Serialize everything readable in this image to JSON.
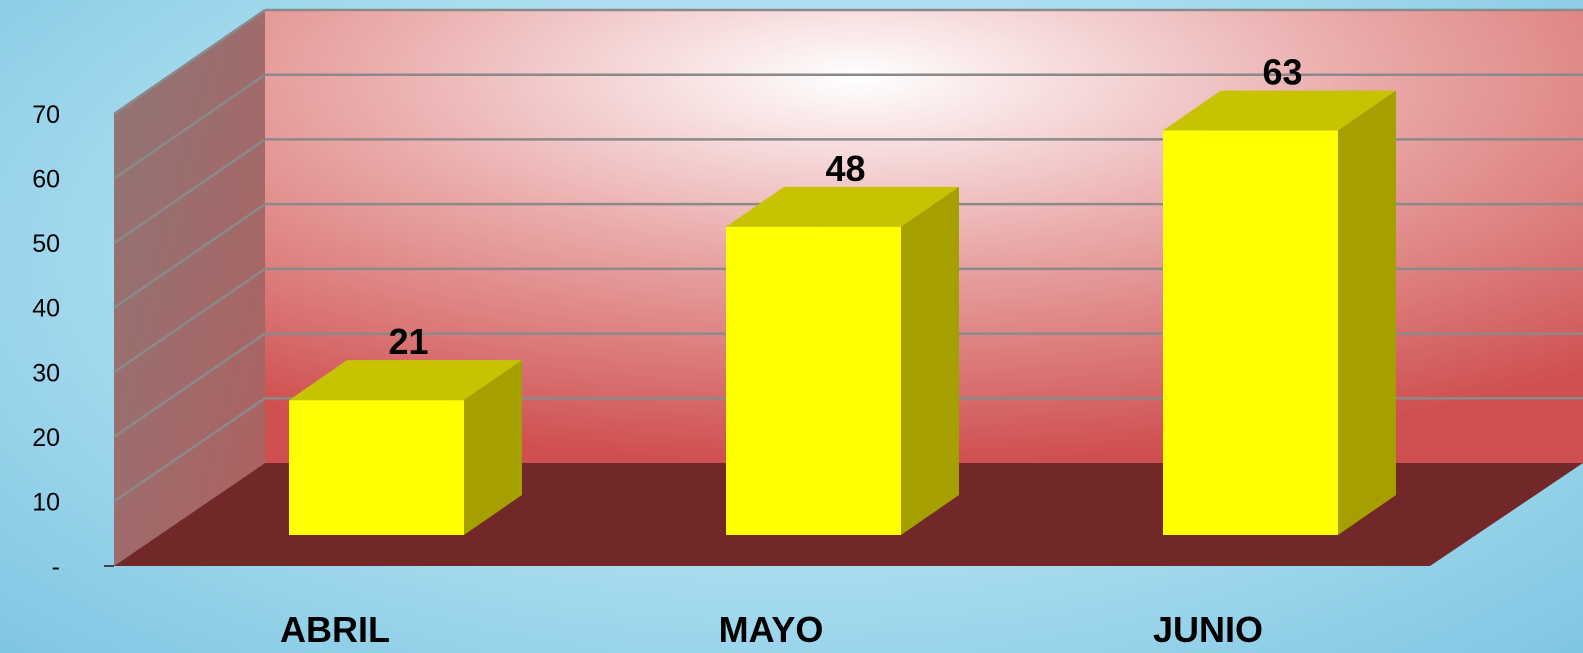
{
  "chart_data": {
    "type": "bar",
    "style": "3d-column",
    "categories": [
      "ABRIL",
      "MAYO",
      "JUNIO"
    ],
    "values": [
      21,
      48,
      63
    ],
    "ylim": [
      0,
      70
    ],
    "yticks": [
      0,
      10,
      20,
      30,
      40,
      50,
      60,
      70
    ],
    "ytick_labels": [
      "-",
      "10",
      "20",
      "30",
      "40",
      "50",
      "60",
      "70"
    ],
    "data_labels": [
      "21",
      "48",
      "63"
    ],
    "grid": true,
    "legend": "none",
    "colors": {
      "bar_front": "#ffff00",
      "bar_top": "#c8c300",
      "bar_side": "#a5a000",
      "back_wall": "#d96a6a",
      "side_wall": "#a06a6a",
      "floor": "#722828",
      "background": "#a9dcef"
    }
  }
}
